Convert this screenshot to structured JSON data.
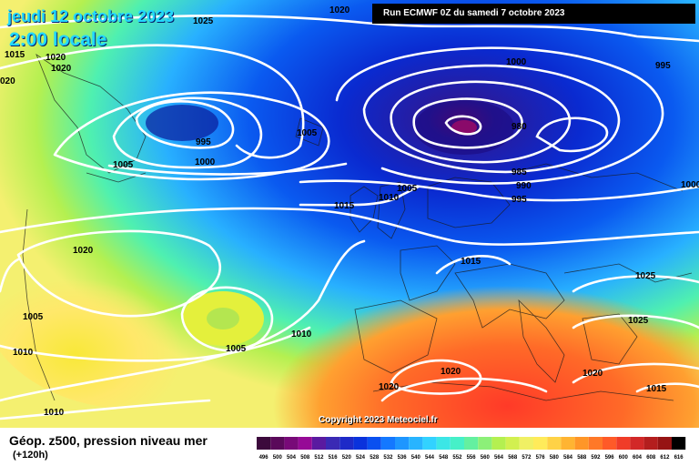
{
  "header": {
    "date_title": "jeudi 12 octobre 2023",
    "time_title": "2:00 locale",
    "run_info": "Run ECMWF 0Z du samedi 7 octobre 2023"
  },
  "footer": {
    "caption": "Géop. z500, pression niveau mer",
    "lead_time": "(+120h)",
    "copyright": "Copyright 2023 Meteociel.fr"
  },
  "isobar_labels": [
    "1025",
    "1020",
    "1015",
    "1020",
    "1020",
    "020",
    "995",
    "1000",
    "1005",
    "1005",
    "1000",
    "980",
    "985",
    "990",
    "995",
    "1000",
    "995",
    "1010",
    "1005",
    "1015",
    "1015",
    "1020",
    "1005",
    "1010",
    "1005",
    "1010",
    "1020",
    "1020",
    "1010",
    "1025",
    "1025",
    "1020",
    "1015"
  ],
  "scale": {
    "values": [
      "496",
      "500",
      "504",
      "508",
      "512",
      "516",
      "520",
      "524",
      "528",
      "532",
      "536",
      "540",
      "544",
      "548",
      "552",
      "556",
      "560",
      "564",
      "568",
      "572",
      "576",
      "580",
      "584",
      "588",
      "592",
      "596",
      "600",
      "604",
      "608",
      "612",
      "616"
    ],
    "colors": [
      "#3c0a3c",
      "#5a0a5a",
      "#780a78",
      "#960a96",
      "#5a1aa0",
      "#3a2ab4",
      "#1e2ac8",
      "#0a32dc",
      "#0a50f0",
      "#1478ff",
      "#1e96ff",
      "#28b4ff",
      "#32d2ff",
      "#3ce6e6",
      "#46f0c8",
      "#64f0a0",
      "#8cf078",
      "#b4f050",
      "#d2f050",
      "#f0f064",
      "#ffeb5a",
      "#ffd246",
      "#ffb432",
      "#ff9628",
      "#ff7828",
      "#ff5a28",
      "#f03c28",
      "#d22828",
      "#b41e1e",
      "#961414",
      "#000000"
    ]
  }
}
